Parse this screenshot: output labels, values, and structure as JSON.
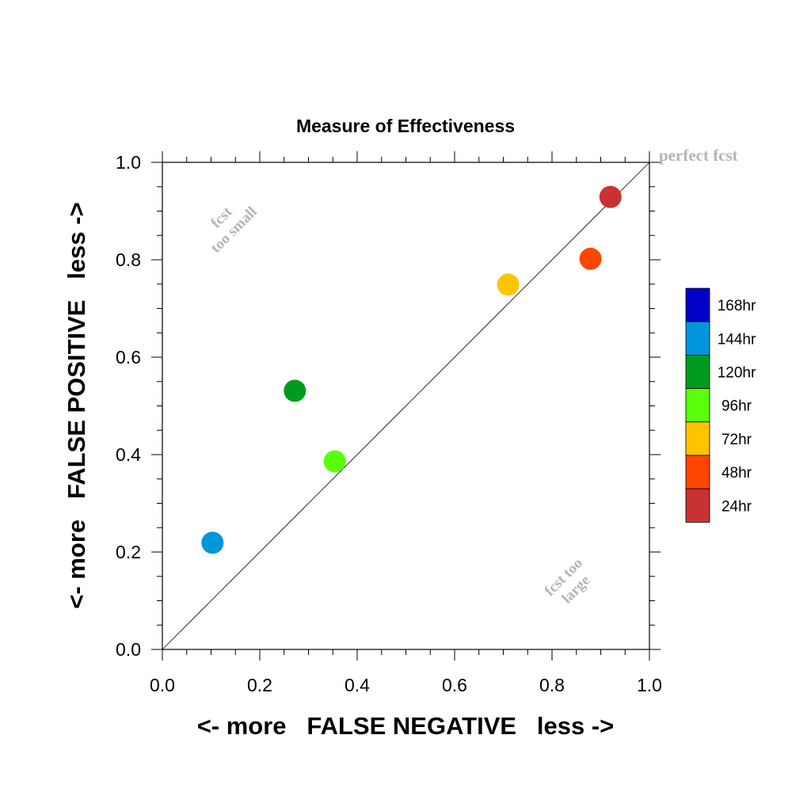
{
  "chart_data": {
    "type": "scatter",
    "title": "Measure of Effectiveness",
    "xlabel": "<- more   FALSE NEGATIVE   less ->",
    "ylabel": "<- more   FALSE POSITIVE   less ->",
    "xlim": [
      0.0,
      1.0
    ],
    "ylim": [
      0.0,
      1.0
    ],
    "x_ticks": [
      "0.0",
      "0.2",
      "0.4",
      "0.6",
      "0.8",
      "1.0"
    ],
    "y_ticks": [
      "0.0",
      "0.2",
      "0.4",
      "0.6",
      "0.8",
      "1.0"
    ],
    "grid": false,
    "legend_position": "right",
    "reference_line": {
      "from": [
        0,
        0
      ],
      "to": [
        1,
        1
      ]
    },
    "annotations": {
      "perfect": "perfect fcst",
      "small_line1": "fcst",
      "small_line2": "too small",
      "large_line1": "fcst too",
      "large_line2": "large"
    },
    "legend": [
      {
        "label": "168hr",
        "color": "#0000c8"
      },
      {
        "label": "144hr",
        "color": "#0096dc"
      },
      {
        "label": "120hr",
        "color": "#009b1e"
      },
      {
        "label": "96hr",
        "color": "#5aff0a"
      },
      {
        "label": "72hr",
        "color": "#ffc300"
      },
      {
        "label": "48hr",
        "color": "#ff4600"
      },
      {
        "label": "24hr",
        "color": "#c83232"
      }
    ],
    "points": [
      {
        "label": "144hr",
        "x": 0.103,
        "y": 0.219,
        "color": "#0096dc"
      },
      {
        "label": "120hr",
        "x": 0.272,
        "y": 0.531,
        "color": "#009b1e"
      },
      {
        "label": "96hr",
        "x": 0.354,
        "y": 0.386,
        "color": "#5aff0a"
      },
      {
        "label": "72hr",
        "x": 0.71,
        "y": 0.749,
        "color": "#ffc300"
      },
      {
        "label": "48hr",
        "x": 0.879,
        "y": 0.802,
        "color": "#ff4600"
      },
      {
        "label": "24hr",
        "x": 0.92,
        "y": 0.929,
        "color": "#c83232"
      }
    ]
  }
}
